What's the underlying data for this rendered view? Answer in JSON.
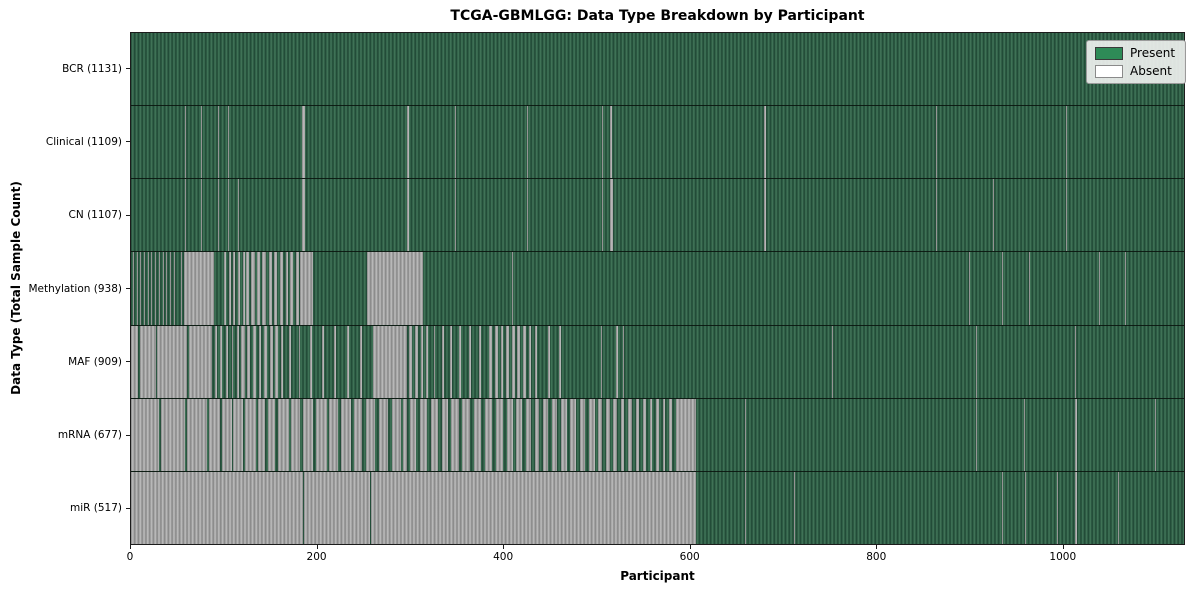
{
  "colors": {
    "present": "#2e8b57",
    "absent": "#ffffff",
    "bar_green_dark": "#1d4532",
    "bar_green_light": "#44795c",
    "bar_gray_dark": "#848484",
    "bar_gray_light": "#c0c0c0"
  },
  "legend": {
    "present_label": "Present",
    "absent_label": "Absent"
  },
  "chart_data": {
    "type": "heatmap",
    "title": "TCGA-GBMLGG: Data Type Breakdown by Participant",
    "xlabel": "Participant",
    "ylabel": "Data Type (Total Sample Count)",
    "x_max": 1131,
    "x_ticks": [
      0,
      200,
      400,
      600,
      800,
      1000
    ],
    "legend_entries": [
      "Present",
      "Absent"
    ],
    "legend_position": "upper right",
    "rows": [
      {
        "key": "bcr",
        "label": "BCR (1131)",
        "present_count": 1131,
        "absent_ranges": []
      },
      {
        "key": "clinical",
        "label": "Clinical (1109)",
        "present_count": 1109,
        "absent_ranges": [
          [
            58,
            59
          ],
          [
            75,
            76
          ],
          [
            93,
            94
          ],
          [
            104,
            105
          ],
          [
            184,
            187
          ],
          [
            253,
            254
          ],
          [
            296,
            299
          ],
          [
            348,
            349
          ],
          [
            355,
            356
          ],
          [
            425,
            426
          ],
          [
            506,
            507
          ],
          [
            515,
            517
          ],
          [
            543,
            544
          ],
          [
            680,
            682
          ],
          [
            865,
            866
          ],
          [
            1004,
            1005
          ]
        ]
      },
      {
        "key": "cn",
        "label": "CN (1107)",
        "present_count": 1107,
        "absent_ranges": [
          [
            58,
            59
          ],
          [
            75,
            76
          ],
          [
            93,
            94
          ],
          [
            104,
            105
          ],
          [
            115,
            116
          ],
          [
            184,
            187
          ],
          [
            253,
            254
          ],
          [
            296,
            299
          ],
          [
            348,
            349
          ],
          [
            355,
            356
          ],
          [
            425,
            426
          ],
          [
            506,
            507
          ],
          [
            515,
            518
          ],
          [
            543,
            544
          ],
          [
            680,
            682
          ],
          [
            865,
            866
          ],
          [
            926,
            927
          ],
          [
            1004,
            1005
          ]
        ]
      },
      {
        "key": "methylation",
        "label": "Methylation (938)",
        "present_count": 938,
        "absent_ranges": [
          [
            2,
            3
          ],
          [
            6,
            7
          ],
          [
            10,
            11
          ],
          [
            14,
            15
          ],
          [
            18,
            19
          ],
          [
            22,
            23
          ],
          [
            26,
            27
          ],
          [
            30,
            31
          ],
          [
            34,
            35
          ],
          [
            38,
            39
          ],
          [
            42,
            43
          ],
          [
            46,
            47
          ],
          [
            50,
            51
          ],
          [
            54,
            55
          ],
          [
            57,
            89
          ],
          [
            100,
            102
          ],
          [
            105,
            107
          ],
          [
            110,
            112
          ],
          [
            115,
            117
          ],
          [
            120,
            122
          ],
          [
            123,
            127
          ],
          [
            129,
            133
          ],
          [
            135,
            139
          ],
          [
            141,
            145
          ],
          [
            148,
            151
          ],
          [
            154,
            157
          ],
          [
            160,
            163
          ],
          [
            166,
            169
          ],
          [
            171,
            174
          ],
          [
            177,
            180
          ],
          [
            182,
            196
          ],
          [
            254,
            314
          ],
          [
            409,
            410
          ],
          [
            900,
            901
          ],
          [
            936,
            937
          ],
          [
            965,
            966
          ],
          [
            1040,
            1041
          ],
          [
            1068,
            1069
          ]
        ]
      },
      {
        "key": "maf",
        "label": "MAF (909)",
        "present_count": 909,
        "absent_ranges": [
          [
            0,
            8
          ],
          [
            10,
            27
          ],
          [
            28,
            60
          ],
          [
            62,
            87
          ],
          [
            90,
            92
          ],
          [
            96,
            98
          ],
          [
            102,
            104
          ],
          [
            108,
            110
          ],
          [
            114,
            116
          ],
          [
            118,
            122
          ],
          [
            125,
            128
          ],
          [
            131,
            134
          ],
          [
            137,
            140
          ],
          [
            143,
            146
          ],
          [
            149,
            152
          ],
          [
            155,
            158
          ],
          [
            161,
            163
          ],
          [
            170,
            172
          ],
          [
            180,
            182
          ],
          [
            192,
            194
          ],
          [
            205,
            207
          ],
          [
            218,
            220
          ],
          [
            232,
            234
          ],
          [
            246,
            248
          ],
          [
            260,
            296
          ],
          [
            299,
            302
          ],
          [
            305,
            308
          ],
          [
            311,
            314
          ],
          [
            317,
            319
          ],
          [
            325,
            327
          ],
          [
            334,
            336
          ],
          [
            343,
            345
          ],
          [
            352,
            354
          ],
          [
            363,
            365
          ],
          [
            374,
            376
          ],
          [
            385,
            388
          ],
          [
            391,
            394
          ],
          [
            397,
            400
          ],
          [
            403,
            406
          ],
          [
            409,
            412
          ],
          [
            415,
            418
          ],
          [
            421,
            424
          ],
          [
            427,
            430
          ],
          [
            434,
            436
          ],
          [
            448,
            450
          ],
          [
            460,
            462
          ],
          [
            471,
            472
          ],
          [
            505,
            506
          ],
          [
            521,
            523
          ],
          [
            528,
            530
          ],
          [
            753,
            754
          ],
          [
            908,
            909
          ],
          [
            1014,
            1015
          ]
        ]
      },
      {
        "key": "mrna",
        "label": "mRNA (677)",
        "present_count": 677,
        "absent_ranges": [
          [
            0,
            30
          ],
          [
            32,
            58
          ],
          [
            60,
            82
          ],
          [
            84,
            96
          ],
          [
            98,
            108
          ],
          [
            110,
            120
          ],
          [
            122,
            134
          ],
          [
            136,
            144
          ],
          [
            147,
            155
          ],
          [
            158,
            170
          ],
          [
            172,
            182
          ],
          [
            185,
            196
          ],
          [
            199,
            210
          ],
          [
            213,
            222
          ],
          [
            226,
            236
          ],
          [
            239,
            248
          ],
          [
            252,
            262
          ],
          [
            266,
            276
          ],
          [
            280,
            290
          ],
          [
            292,
            296
          ],
          [
            300,
            306
          ],
          [
            310,
            318
          ],
          [
            322,
            330
          ],
          [
            334,
            340
          ],
          [
            344,
            352
          ],
          [
            356,
            364
          ],
          [
            368,
            376
          ],
          [
            380,
            388
          ],
          [
            392,
            400
          ],
          [
            404,
            410
          ],
          [
            414,
            420
          ],
          [
            424,
            430
          ],
          [
            434,
            438
          ],
          [
            442,
            448
          ],
          [
            452,
            458
          ],
          [
            462,
            468
          ],
          [
            472,
            478
          ],
          [
            482,
            488
          ],
          [
            492,
            498
          ],
          [
            502,
            506
          ],
          [
            510,
            514
          ],
          [
            518,
            522
          ],
          [
            526,
            530
          ],
          [
            534,
            538
          ],
          [
            542,
            546
          ],
          [
            550,
            553
          ],
          [
            557,
            560
          ],
          [
            564,
            567
          ],
          [
            571,
            574
          ],
          [
            578,
            581
          ],
          [
            585,
            607
          ],
          [
            660,
            661
          ],
          [
            908,
            909
          ],
          [
            959,
            960
          ],
          [
            1014,
            1016
          ],
          [
            1100,
            1101
          ]
        ]
      },
      {
        "key": "mir",
        "label": "miR (517)",
        "present_count": 517,
        "absent_ranges": [
          [
            0,
            185
          ],
          [
            186,
            257
          ],
          [
            258,
            607
          ],
          [
            660,
            661
          ],
          [
            712,
            713
          ],
          [
            936,
            937
          ],
          [
            960,
            961
          ],
          [
            995,
            996
          ],
          [
            1014,
            1016
          ],
          [
            1060,
            1061
          ]
        ]
      }
    ]
  }
}
